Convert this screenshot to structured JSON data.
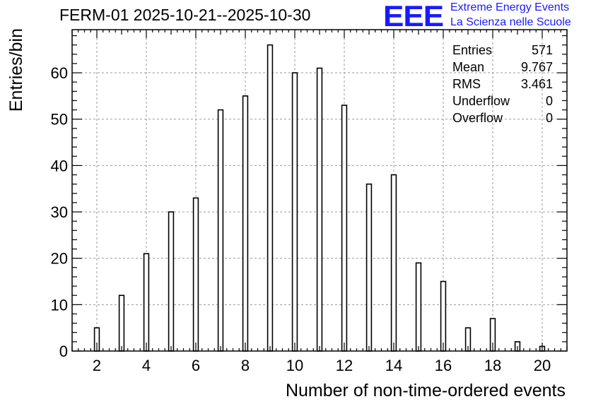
{
  "header": {
    "title": "FERM-01 2025-10-21--2025-10-30",
    "logo": "EEE",
    "brand_line1": "Extreme Energy Events",
    "brand_line2": "La Scienza nelle Scuole"
  },
  "stats": [
    {
      "label": "Entries",
      "value": "571"
    },
    {
      "label": "Mean",
      "value": "9.767"
    },
    {
      "label": "RMS",
      "value": "3.461"
    },
    {
      "label": "Underflow",
      "value": "0"
    },
    {
      "label": "Overflow",
      "value": "0"
    }
  ],
  "chart_data": {
    "type": "bar",
    "xlabel": "Number of non-time-ordered events",
    "ylabel": "Entries/bin",
    "xlim": [
      1,
      21
    ],
    "ylim": [
      0,
      69.3
    ],
    "x_ticks": [
      "2",
      "4",
      "6",
      "8",
      "10",
      "12",
      "14",
      "16",
      "18",
      "20"
    ],
    "y_ticks": [
      "0",
      "10",
      "20",
      "30",
      "40",
      "50",
      "60"
    ],
    "grid": true,
    "x": [
      2,
      3,
      4,
      5,
      6,
      7,
      8,
      9,
      10,
      11,
      12,
      13,
      14,
      15,
      16,
      17,
      18,
      19,
      20
    ],
    "values": [
      5,
      12,
      21,
      30,
      33,
      52,
      55,
      66,
      60,
      61,
      53,
      36,
      38,
      19,
      15,
      5,
      7,
      2,
      1
    ],
    "colors": {
      "bar_fill": "#ffffff",
      "bar_stroke": "#000000",
      "grid": "#9a9a9a"
    }
  }
}
